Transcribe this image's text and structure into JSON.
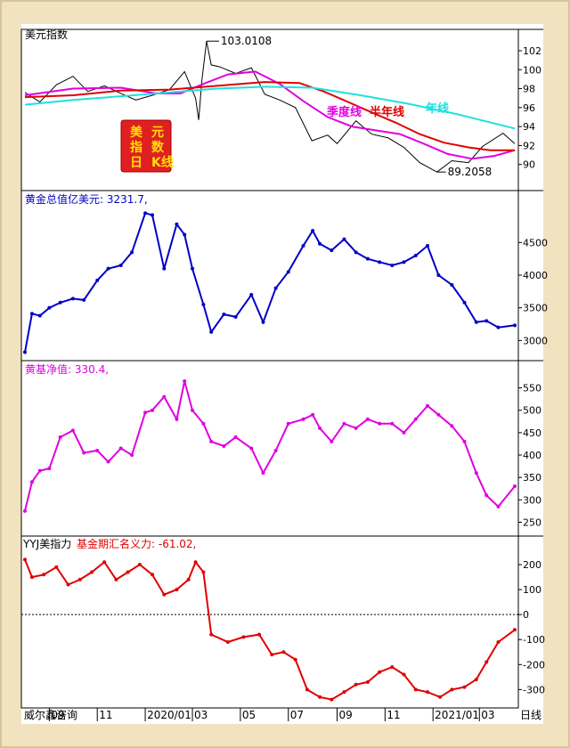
{
  "source_label": "威尔鑫咨询",
  "period_label": "日线",
  "x_axis": {
    "start": "2019-08-01",
    "end": "2021-04-15",
    "ticks": [
      {
        "date": "2019-09-01",
        "label": "09"
      },
      {
        "date": "2019-11-01",
        "label": "11"
      },
      {
        "date": "2020-01-01",
        "label": "2020/01"
      },
      {
        "date": "2020-03-01",
        "label": "03"
      },
      {
        "date": "2020-05-01",
        "label": "05"
      },
      {
        "date": "2020-07-01",
        "label": "07"
      },
      {
        "date": "2020-09-01",
        "label": "09"
      },
      {
        "date": "2020-11-01",
        "label": "11"
      },
      {
        "date": "2021-01-01",
        "label": "2021/01"
      },
      {
        "date": "2021-03-01",
        "label": "03"
      }
    ]
  },
  "badge": {
    "lines": [
      [
        "美",
        "元"
      ],
      [
        "指",
        "数"
      ],
      [
        "日",
        "K线"
      ]
    ],
    "bg_color": "#e02020",
    "text_color": "#ffe000"
  },
  "chart_data": [
    {
      "type": "line",
      "title": "美元指数",
      "ylim": [
        88,
        103.5
      ],
      "yticks": [
        90,
        92,
        94,
        96,
        98,
        100,
        102
      ],
      "series": [
        {
          "name": "",
          "color": "#000000",
          "width": 1,
          "x": [
            "2019-08-01",
            "2019-08-20",
            "2019-09-10",
            "2019-10-01",
            "2019-10-20",
            "2019-11-10",
            "2019-12-01",
            "2019-12-20",
            "2020-01-10",
            "2020-02-01",
            "2020-02-20",
            "2020-03-05",
            "2020-03-09",
            "2020-03-13",
            "2020-03-19",
            "2020-03-25",
            "2020-04-05",
            "2020-04-25",
            "2020-05-15",
            "2020-06-01",
            "2020-06-20",
            "2020-07-10",
            "2020-07-31",
            "2020-08-20",
            "2020-09-01",
            "2020-09-25",
            "2020-10-15",
            "2020-11-05",
            "2020-11-25",
            "2020-12-15",
            "2021-01-06",
            "2021-01-25",
            "2021-02-15",
            "2021-03-05",
            "2021-03-31",
            "2021-04-15"
          ],
          "y": [
            97.6,
            96.6,
            98.4,
            99.3,
            97.7,
            98.3,
            97.5,
            96.8,
            97.3,
            97.9,
            99.8,
            97.0,
            94.7,
            98.8,
            103.0108,
            100.5,
            100.3,
            99.6,
            100.2,
            97.4,
            96.8,
            96.0,
            92.5,
            93.1,
            92.2,
            94.6,
            93.2,
            92.8,
            91.8,
            90.2,
            89.2058,
            90.4,
            90.2,
            91.9,
            93.3,
            92.2
          ]
        },
        {
          "name": "季度线",
          "color": "#e000e0",
          "width": 2,
          "x": [
            "2019-08-01",
            "2019-10-01",
            "2019-12-01",
            "2020-01-15",
            "2020-02-15",
            "2020-03-15",
            "2020-04-15",
            "2020-05-20",
            "2020-06-20",
            "2020-07-20",
            "2020-08-20",
            "2020-09-20",
            "2020-10-20",
            "2020-11-20",
            "2020-12-20",
            "2021-01-20",
            "2021-02-20",
            "2021-03-20",
            "2021-04-15"
          ],
          "y": [
            97.3,
            98.0,
            98.1,
            97.5,
            97.5,
            98.5,
            99.5,
            99.8,
            98.5,
            96.7,
            95.0,
            94.0,
            93.6,
            93.2,
            92.2,
            91.1,
            90.6,
            90.9,
            91.5
          ]
        },
        {
          "name": "半年线",
          "color": "#e00000",
          "width": 2,
          "x": [
            "2019-08-01",
            "2019-10-01",
            "2019-12-01",
            "2020-02-01",
            "2020-04-01",
            "2020-06-01",
            "2020-07-15",
            "2020-08-15",
            "2020-09-15",
            "2020-10-15",
            "2020-11-15",
            "2020-12-15",
            "2021-01-15",
            "2021-02-15",
            "2021-03-15",
            "2021-04-15"
          ],
          "y": [
            97.1,
            97.3,
            97.8,
            97.9,
            98.3,
            98.7,
            98.6,
            97.7,
            96.6,
            95.5,
            94.4,
            93.2,
            92.3,
            91.8,
            91.5,
            91.5
          ]
        },
        {
          "name": "年线",
          "color": "#20e0e0",
          "width": 2,
          "x": [
            "2019-08-01",
            "2019-10-01",
            "2019-12-01",
            "2020-02-01",
            "2020-04-01",
            "2020-06-01",
            "2020-08-01",
            "2020-10-01",
            "2020-12-01",
            "2021-02-01",
            "2021-04-15"
          ],
          "y": [
            96.3,
            96.8,
            97.2,
            97.6,
            98.0,
            98.2,
            98.1,
            97.3,
            96.4,
            95.3,
            93.8
          ]
        }
      ],
      "annotations": [
        {
          "text": "103.0108",
          "x": "2020-03-19",
          "y": 103.0108
        },
        {
          "text": "89.2058",
          "x": "2021-01-06",
          "y": 89.2058
        }
      ]
    },
    {
      "type": "line",
      "title": "黄金总值亿美元: 3231.7,",
      "ylim": [
        2800,
        5050
      ],
      "yticks": [
        3000,
        3500,
        4000,
        4500
      ],
      "series": [
        {
          "name": "",
          "color": "#0000c8",
          "width": 2,
          "x": [
            "2019-08-01",
            "2019-08-10",
            "2019-08-20",
            "2019-09-01",
            "2019-09-15",
            "2019-10-01",
            "2019-10-15",
            "2019-11-01",
            "2019-11-15",
            "2019-12-01",
            "2019-12-15",
            "2020-01-01",
            "2020-01-10",
            "2020-01-25",
            "2020-02-10",
            "2020-02-20",
            "2020-03-01",
            "2020-03-15",
            "2020-03-25",
            "2020-04-10",
            "2020-04-25",
            "2020-05-15",
            "2020-05-30",
            "2020-06-15",
            "2020-07-01",
            "2020-07-20",
            "2020-08-01",
            "2020-08-10",
            "2020-08-25",
            "2020-09-10",
            "2020-09-25",
            "2020-10-10",
            "2020-10-25",
            "2020-11-10",
            "2020-11-25",
            "2020-12-10",
            "2020-12-25",
            "2021-01-08",
            "2021-01-25",
            "2021-02-10",
            "2021-02-25",
            "2021-03-10",
            "2021-03-25",
            "2021-04-15"
          ],
          "y": [
            2820,
            3410,
            3380,
            3500,
            3580,
            3640,
            3620,
            3920,
            4100,
            4150,
            4350,
            4950,
            4920,
            4100,
            4780,
            4620,
            4100,
            3550,
            3130,
            3400,
            3360,
            3700,
            3280,
            3800,
            4050,
            4450,
            4680,
            4480,
            4380,
            4550,
            4350,
            4250,
            4200,
            4150,
            4200,
            4300,
            4450,
            4000,
            3850,
            3580,
            3280,
            3300,
            3200,
            3231.7
          ]
        }
      ]
    },
    {
      "type": "line",
      "title": "黄基净值: 330.4,",
      "ylim": [
        235,
        575
      ],
      "yticks": [
        250,
        300,
        350,
        400,
        450,
        500,
        550
      ],
      "series": [
        {
          "name": "",
          "color": "#e000e0",
          "width": 2,
          "x": [
            "2019-08-01",
            "2019-08-10",
            "2019-08-20",
            "2019-09-01",
            "2019-09-15",
            "2019-10-01",
            "2019-10-15",
            "2019-11-01",
            "2019-11-15",
            "2019-12-01",
            "2019-12-15",
            "2020-01-01",
            "2020-01-10",
            "2020-01-25",
            "2020-02-10",
            "2020-02-20",
            "2020-03-01",
            "2020-03-15",
            "2020-03-25",
            "2020-04-10",
            "2020-04-25",
            "2020-05-15",
            "2020-05-30",
            "2020-06-15",
            "2020-07-01",
            "2020-07-20",
            "2020-08-01",
            "2020-08-10",
            "2020-08-25",
            "2020-09-10",
            "2020-09-25",
            "2020-10-10",
            "2020-10-25",
            "2020-11-10",
            "2020-11-25",
            "2020-12-10",
            "2020-12-25",
            "2021-01-08",
            "2021-01-25",
            "2021-02-10",
            "2021-02-25",
            "2021-03-10",
            "2021-03-25",
            "2021-04-15"
          ],
          "y": [
            275,
            340,
            365,
            370,
            440,
            455,
            405,
            410,
            385,
            415,
            400,
            495,
            500,
            530,
            480,
            565,
            500,
            470,
            430,
            420,
            440,
            415,
            360,
            410,
            470,
            480,
            490,
            460,
            430,
            470,
            460,
            480,
            470,
            470,
            450,
            480,
            510,
            490,
            465,
            430,
            360,
            310,
            285,
            330.4
          ]
        }
      ]
    },
    {
      "type": "line",
      "title": "YYJ美指力",
      "subtitle": "基金期汇名义力: -61.02,",
      "ylim": [
        -345,
        250
      ],
      "yticks": [
        -300,
        -200,
        -100,
        0,
        100,
        200
      ],
      "zero_line": true,
      "series": [
        {
          "name": "",
          "color": "#e00000",
          "width": 2,
          "x": [
            "2019-08-01",
            "2019-08-10",
            "2019-08-25",
            "2019-09-10",
            "2019-09-25",
            "2019-10-10",
            "2019-10-25",
            "2019-11-10",
            "2019-11-25",
            "2019-12-10",
            "2019-12-25",
            "2020-01-10",
            "2020-01-25",
            "2020-02-10",
            "2020-02-25",
            "2020-03-05",
            "2020-03-15",
            "2020-03-25",
            "2020-04-15",
            "2020-05-05",
            "2020-05-25",
            "2020-06-10",
            "2020-06-25",
            "2020-07-10",
            "2020-07-25",
            "2020-08-10",
            "2020-08-25",
            "2020-09-10",
            "2020-09-25",
            "2020-10-10",
            "2020-10-25",
            "2020-11-10",
            "2020-11-25",
            "2020-12-10",
            "2020-12-25",
            "2021-01-10",
            "2021-01-25",
            "2021-02-10",
            "2021-02-25",
            "2021-03-10",
            "2021-03-25",
            "2021-04-15"
          ],
          "y": [
            220,
            150,
            160,
            190,
            120,
            140,
            170,
            210,
            140,
            170,
            200,
            160,
            80,
            100,
            140,
            210,
            170,
            -80,
            -110,
            -90,
            -80,
            -160,
            -150,
            -180,
            -300,
            -330,
            -340,
            -310,
            -280,
            -270,
            -230,
            -210,
            -240,
            -300,
            -310,
            -330,
            -300,
            -290,
            -260,
            -190,
            -110,
            -61.02
          ]
        }
      ]
    }
  ]
}
